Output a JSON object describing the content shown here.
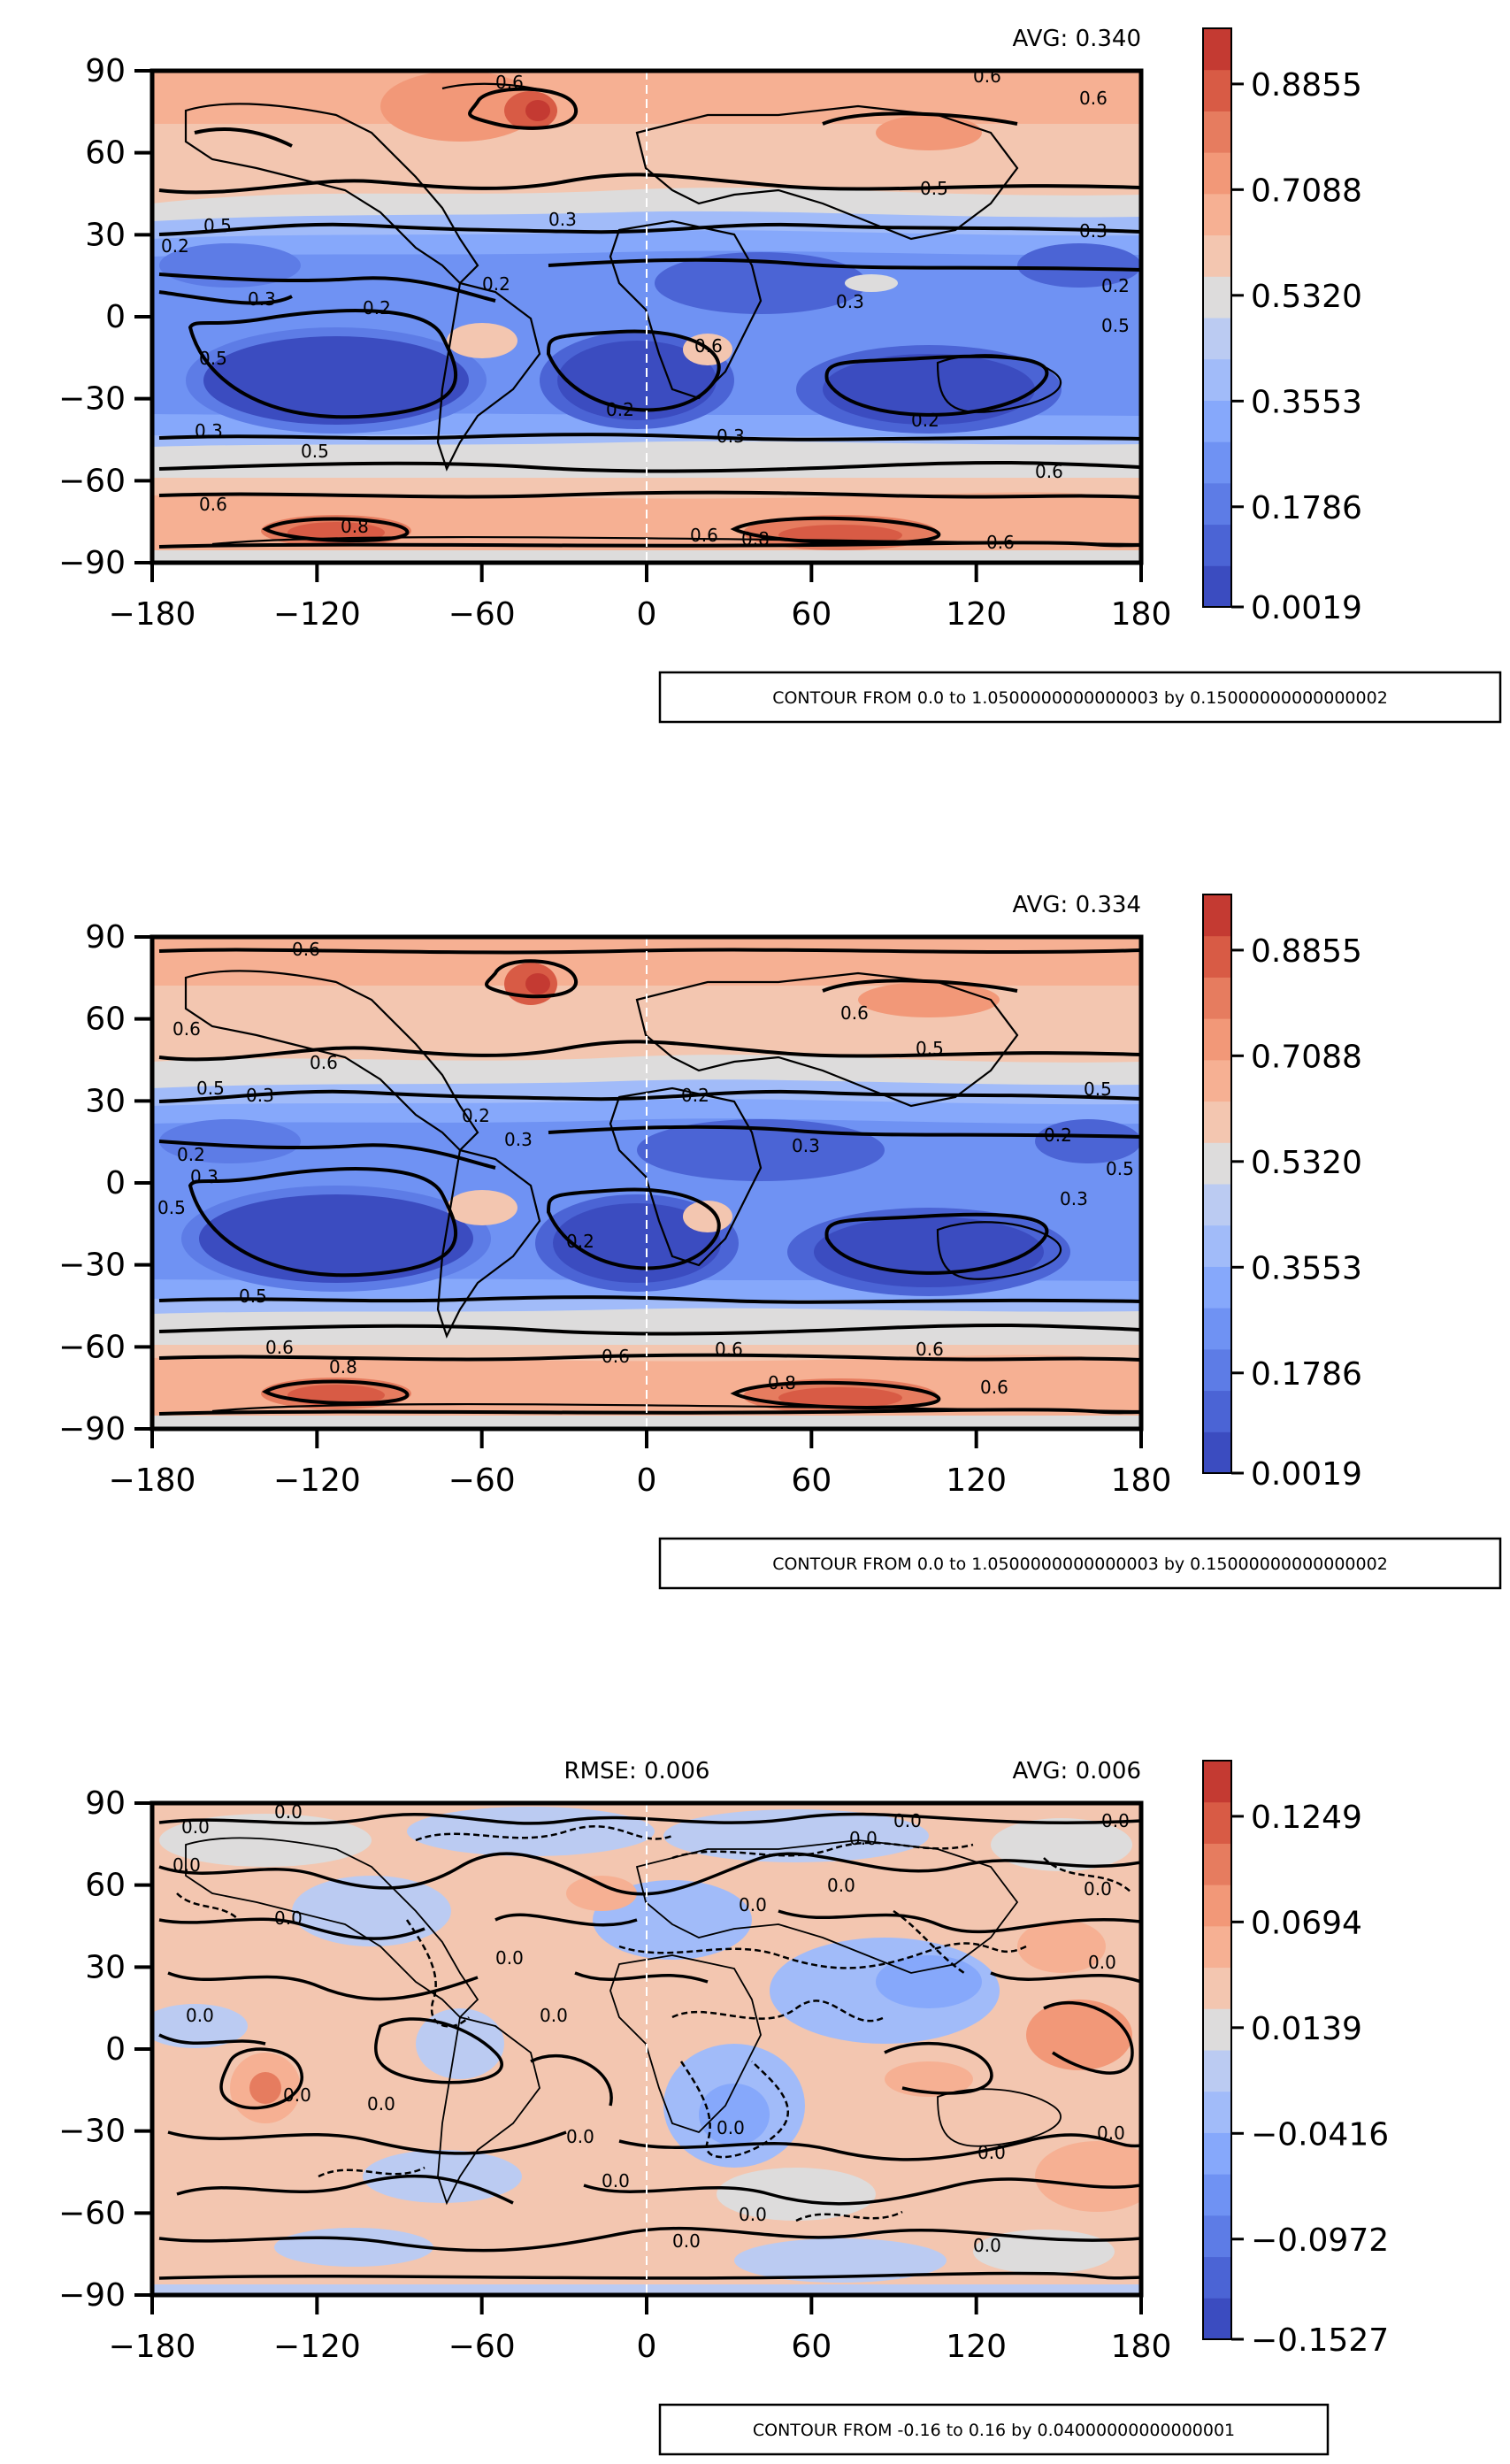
{
  "panels": [
    {
      "avg_label": "AVG: 0.340",
      "rmse_label": "",
      "contour_note": "CONTOUR FROM 0.0 to 1.0500000000000003 by 0.15000000000000002",
      "colorbar_ticks": [
        "0.8855",
        "0.7088",
        "0.5320",
        "0.3553",
        "0.1786",
        "0.0019"
      ],
      "contour_labels": [
        "0.6",
        "0.6",
        "0.6",
        "0.5",
        "0.5",
        "0.3",
        "0.2",
        "0.3",
        "0.2",
        "0.5",
        "0.2",
        "0.3",
        "0.5",
        "0.2",
        "0.6",
        "0.3",
        "0.5",
        "0.6",
        "0.8",
        "0.6",
        "0.8",
        "0.6",
        "0.6",
        "0.2",
        "0.3",
        "0.2",
        "0.3"
      ],
      "colors": [
        "#3b4cc0",
        "#4b64d5",
        "#5d7ce6",
        "#6f92f3",
        "#86a8fb",
        "#a1bbf9",
        "#bbcbf2",
        "#dddcdc",
        "#f3c6b0",
        "#f6b093",
        "#f29878",
        "#e67c5f",
        "#d85b45",
        "#c43a32"
      ]
    },
    {
      "avg_label": "AVG: 0.334",
      "rmse_label": "",
      "contour_note": "CONTOUR FROM 0.0 to 1.0500000000000003 by 0.15000000000000002",
      "colorbar_ticks": [
        "0.8855",
        "0.7088",
        "0.5320",
        "0.3553",
        "0.1786",
        "0.0019"
      ],
      "contour_labels": [
        "0.6",
        "0.6",
        "0.6",
        "0.6",
        "0.5",
        "0.5",
        "0.3",
        "0.2",
        "0.2",
        "0.2",
        "0.5",
        "0.3",
        "0.2",
        "0.5",
        "0.3",
        "0.5",
        "0.3",
        "0.3",
        "0.2",
        "0.5",
        "0.6",
        "0.8",
        "0.6",
        "0.6",
        "0.8",
        "0.6",
        "0.6"
      ],
      "colors": [
        "#3b4cc0",
        "#4b64d5",
        "#5d7ce6",
        "#6f92f3",
        "#86a8fb",
        "#a1bbf9",
        "#bbcbf2",
        "#dddcdc",
        "#f3c6b0",
        "#f6b093",
        "#f29878",
        "#e67c5f",
        "#d85b45",
        "#c43a32"
      ]
    },
    {
      "avg_label": "AVG: 0.006",
      "rmse_label": "RMSE: 0.006",
      "contour_note": "CONTOUR FROM -0.16 to 0.16 by 0.04000000000000001",
      "colorbar_ticks": [
        "0.1249",
        "0.0694",
        "0.0139",
        "−0.0416",
        "−0.0972",
        "−0.1527"
      ],
      "contour_labels": [
        "0.0",
        "0.0",
        "0.0",
        "0.0",
        "0.0",
        "0.0",
        "0.0",
        "0.0",
        "0.0",
        "0.0",
        "0.0",
        "0.0",
        "0.0",
        "0.0",
        "0.0",
        "0.0",
        "0.0",
        "0.0",
        "0.0",
        "0.0",
        "0.0",
        "0.0",
        "0.0",
        "0.0"
      ],
      "colors": [
        "#3b4cc0",
        "#4b64d5",
        "#5d7ce6",
        "#6f92f3",
        "#86a8fb",
        "#a1bbf9",
        "#bbcbf2",
        "#dddcdc",
        "#f3c6b0",
        "#f6b093",
        "#f29878",
        "#e67c5f",
        "#d85b45",
        "#c43a32"
      ]
    }
  ],
  "y_ticks": [
    "90",
    "60",
    "30",
    "0",
    "−30",
    "−60",
    "−90"
  ],
  "x_ticks": [
    "−180",
    "−120",
    "−60",
    "0",
    "60",
    "120",
    "180"
  ]
}
